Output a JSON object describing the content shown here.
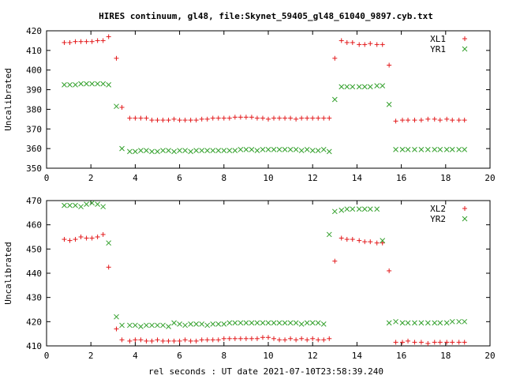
{
  "title": "HIRES continuum, gl48, file:Skynet_59405_gl48_61040_9897.cyb.txt",
  "xlabel": "rel seconds : UT date 2021-07-10T23:58:39.240",
  "colors": {
    "axis": "#000000",
    "red": "#e31a1c",
    "green": "#33a02c"
  },
  "chart_data": [
    {
      "type": "scatter",
      "ylabel": "Uncalibrated",
      "xlim": [
        0,
        20
      ],
      "ylim": [
        350,
        420
      ],
      "xticks": [
        0,
        2,
        4,
        6,
        8,
        10,
        12,
        14,
        16,
        18,
        20
      ],
      "yticks": [
        350,
        360,
        370,
        380,
        390,
        400,
        410,
        420
      ],
      "legend_position": "top-right",
      "series": [
        {
          "name": "XL1",
          "marker": "plus",
          "color": "#e31a1c",
          "x": [
            0.8,
            1.05,
            1.3,
            1.55,
            1.8,
            2.05,
            2.3,
            2.55,
            2.8,
            3.15,
            3.4,
            3.75,
            4.0,
            4.25,
            4.5,
            4.75,
            5.0,
            5.25,
            5.5,
            5.75,
            6.0,
            6.25,
            6.5,
            6.75,
            7.0,
            7.25,
            7.5,
            7.75,
            8.0,
            8.25,
            8.5,
            8.75,
            9.0,
            9.25,
            9.5,
            9.75,
            10.0,
            10.25,
            10.5,
            10.75,
            11.0,
            11.25,
            11.5,
            11.75,
            12.0,
            12.25,
            12.5,
            12.75,
            13.0,
            13.3,
            13.55,
            13.8,
            14.1,
            14.35,
            14.6,
            14.9,
            15.15,
            15.45,
            15.75,
            16.05,
            16.3,
            16.6,
            16.9,
            17.2,
            17.5,
            17.75,
            18.05,
            18.3,
            18.6,
            18.85
          ],
          "y": [
            414,
            414,
            414.5,
            414.5,
            414.5,
            414.5,
            415,
            415,
            417,
            406,
            381,
            375.5,
            375.5,
            375.5,
            375.5,
            374.5,
            374.5,
            374.5,
            374.5,
            375,
            374.5,
            374.5,
            374.5,
            374.5,
            375,
            375,
            375.5,
            375.5,
            375.5,
            375.5,
            376,
            376,
            376,
            376,
            375.5,
            375.5,
            375,
            375.5,
            375.5,
            375.5,
            375.5,
            375,
            375.5,
            375.5,
            375.5,
            375.5,
            375.5,
            375.5,
            406,
            415,
            414,
            414,
            413,
            413,
            413.5,
            413,
            413,
            402.5,
            374,
            374.5,
            374.5,
            374.5,
            374.5,
            375,
            375,
            374.5,
            375,
            374.5,
            374.5,
            374.5
          ]
        },
        {
          "name": "YR1",
          "marker": "cross",
          "color": "#33a02c",
          "x": [
            0.8,
            1.05,
            1.3,
            1.55,
            1.8,
            2.05,
            2.3,
            2.55,
            2.8,
            3.15,
            3.4,
            3.75,
            4.0,
            4.25,
            4.5,
            4.75,
            5.0,
            5.25,
            5.5,
            5.75,
            6.0,
            6.25,
            6.5,
            6.75,
            7.0,
            7.25,
            7.5,
            7.75,
            8.0,
            8.25,
            8.5,
            8.75,
            9.0,
            9.25,
            9.5,
            9.75,
            10.0,
            10.25,
            10.5,
            10.75,
            11.0,
            11.25,
            11.5,
            11.75,
            12.0,
            12.25,
            12.5,
            12.75,
            13.0,
            13.3,
            13.55,
            13.8,
            14.1,
            14.35,
            14.6,
            14.9,
            15.15,
            15.45,
            15.75,
            16.05,
            16.3,
            16.6,
            16.9,
            17.2,
            17.5,
            17.75,
            18.05,
            18.3,
            18.6,
            18.85
          ],
          "y": [
            392.5,
            392.5,
            392.5,
            393,
            393,
            393,
            393,
            393,
            392.5,
            381.5,
            360,
            358.5,
            358.5,
            359,
            359,
            358.5,
            358.5,
            359,
            359,
            358.5,
            359,
            359,
            358.5,
            359,
            359,
            359,
            359,
            359,
            359,
            359,
            359,
            359.5,
            359.5,
            359.5,
            359,
            359.5,
            359.5,
            359.5,
            359.5,
            359.5,
            359.5,
            359.5,
            359,
            359.5,
            359,
            359,
            359.5,
            358.5,
            385,
            391.5,
            391.5,
            391.5,
            391.5,
            391.5,
            391.5,
            392,
            392,
            382.5,
            359.5,
            359.5,
            359.5,
            359.5,
            359.5,
            359.5,
            359.5,
            359.5,
            359.5,
            359.5,
            359.5,
            359.5
          ]
        }
      ]
    },
    {
      "type": "scatter",
      "ylabel": "Uncalibrated",
      "xlim": [
        0,
        20
      ],
      "ylim": [
        410,
        470
      ],
      "xticks": [
        0,
        2,
        4,
        6,
        8,
        10,
        12,
        14,
        16,
        18,
        20
      ],
      "yticks": [
        410,
        420,
        430,
        440,
        450,
        460,
        470
      ],
      "legend_position": "top-right",
      "series": [
        {
          "name": "XL2",
          "marker": "plus",
          "color": "#e31a1c",
          "x": [
            0.8,
            1.05,
            1.3,
            1.55,
            1.8,
            2.05,
            2.3,
            2.55,
            2.8,
            3.15,
            3.4,
            3.75,
            4.0,
            4.25,
            4.5,
            4.75,
            5.0,
            5.25,
            5.5,
            5.75,
            6.0,
            6.25,
            6.5,
            6.75,
            7.0,
            7.25,
            7.5,
            7.75,
            8.0,
            8.25,
            8.5,
            8.75,
            9.0,
            9.25,
            9.5,
            9.75,
            10.0,
            10.25,
            10.5,
            10.75,
            11.0,
            11.25,
            11.5,
            11.75,
            12.0,
            12.25,
            12.5,
            12.75,
            13.0,
            13.3,
            13.55,
            13.8,
            14.1,
            14.35,
            14.6,
            14.9,
            15.15,
            15.45,
            15.75,
            16.05,
            16.3,
            16.6,
            16.9,
            17.2,
            17.5,
            17.75,
            18.05,
            18.3,
            18.6,
            18.85
          ],
          "y": [
            454,
            453.5,
            454,
            455,
            454.5,
            454.5,
            455,
            456,
            442.5,
            417,
            412.5,
            412,
            412.5,
            412.5,
            412,
            412,
            412.5,
            412,
            412,
            412,
            412,
            412.5,
            412,
            412,
            412.5,
            412.5,
            412.5,
            412.5,
            413,
            413,
            413,
            413,
            413,
            413,
            413,
            413.5,
            413.5,
            413,
            412.5,
            412.5,
            413,
            412.5,
            413,
            412.5,
            413,
            412.5,
            412.5,
            413,
            445,
            454.5,
            454,
            454,
            453.5,
            453,
            453,
            452.5,
            452.5,
            441,
            411.5,
            411.5,
            412,
            411.5,
            411.5,
            411,
            411.5,
            411.5,
            411.5,
            411.5,
            411.5,
            411.5
          ]
        },
        {
          "name": "YR2",
          "marker": "cross",
          "color": "#33a02c",
          "x": [
            0.8,
            1.05,
            1.3,
            1.55,
            1.8,
            2.05,
            2.3,
            2.55,
            2.8,
            3.15,
            3.4,
            3.75,
            4.0,
            4.25,
            4.5,
            4.75,
            5.0,
            5.25,
            5.5,
            5.75,
            6.0,
            6.25,
            6.5,
            6.75,
            7.0,
            7.25,
            7.5,
            7.75,
            8.0,
            8.25,
            8.5,
            8.75,
            9.0,
            9.25,
            9.5,
            9.75,
            10.0,
            10.25,
            10.5,
            10.75,
            11.0,
            11.25,
            11.5,
            11.75,
            12.0,
            12.25,
            12.5,
            12.75,
            13.0,
            13.3,
            13.55,
            13.8,
            14.1,
            14.35,
            14.6,
            14.9,
            15.15,
            15.45,
            15.75,
            16.05,
            16.3,
            16.6,
            16.9,
            17.2,
            17.5,
            17.75,
            18.05,
            18.3,
            18.6,
            18.85
          ],
          "y": [
            468,
            468,
            468,
            467.5,
            468.5,
            469,
            468.5,
            467.5,
            452.5,
            422,
            418.5,
            418.5,
            418.5,
            418,
            418.5,
            418.5,
            418.5,
            418.5,
            418,
            419.5,
            419,
            418.5,
            419,
            419,
            419,
            418.5,
            419,
            419,
            419,
            419.5,
            419.5,
            419.5,
            419.5,
            419.5,
            419.5,
            419.5,
            419.5,
            419.5,
            419.5,
            419.5,
            419.5,
            419.5,
            419,
            419.5,
            419.5,
            419.5,
            419,
            456,
            465.5,
            466,
            466.5,
            466.5,
            466.5,
            466.5,
            466.5,
            466.5,
            453.5,
            419.5,
            420,
            419.5,
            419.5,
            419.5,
            419.5,
            419.5,
            419.5,
            419.5,
            419.5,
            420,
            420,
            420
          ]
        }
      ]
    }
  ]
}
